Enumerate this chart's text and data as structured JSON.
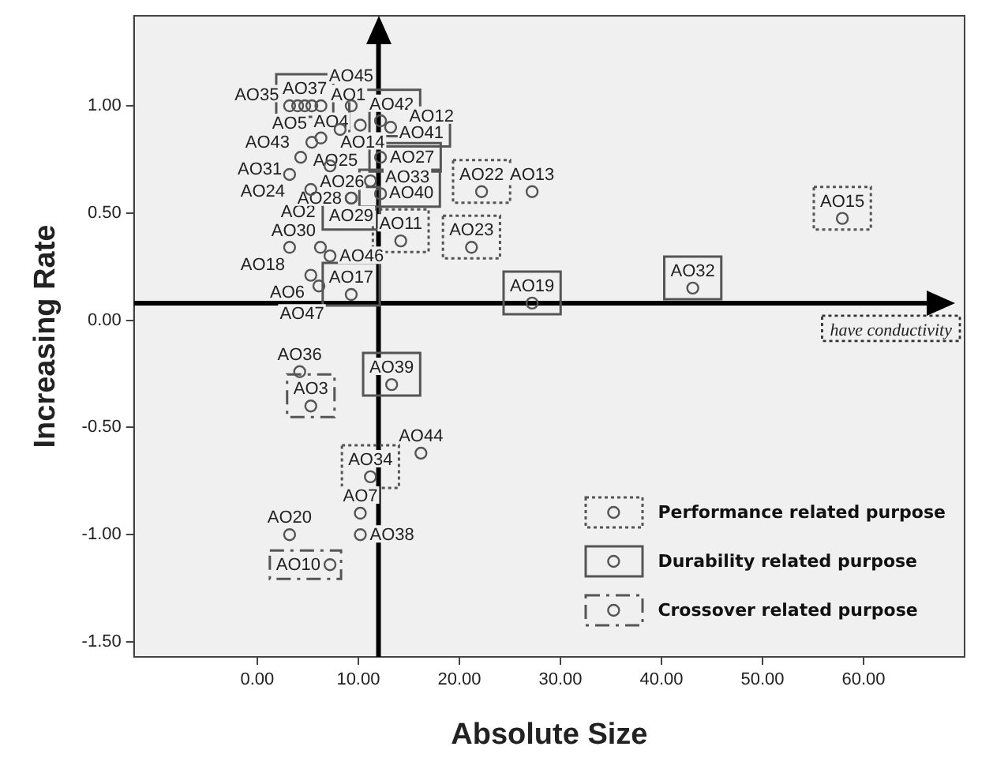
{
  "chart_data": {
    "type": "scatter",
    "xlabel": "Absolute Size",
    "ylabel": "Increasing Rate",
    "marker": "circle",
    "grid": false,
    "legend": "bottom right",
    "xlim": [
      -12.2,
      70
    ],
    "ylim": [
      -1.57,
      1.42
    ],
    "xticks": [
      {
        "value": 0,
        "label": "0.00"
      },
      {
        "value": 10,
        "label": "10.00"
      },
      {
        "value": 20,
        "label": "20.00"
      },
      {
        "value": 30,
        "label": "30.00"
      },
      {
        "value": 40,
        "label": "40.00"
      },
      {
        "value": 50,
        "label": "50.00"
      },
      {
        "value": 60,
        "label": "60.00"
      }
    ],
    "yticks": [
      {
        "value": 1,
        "label": "1.00"
      },
      {
        "value": 0.5,
        "label": "0.50"
      },
      {
        "value": 0,
        "label": "0.00"
      },
      {
        "value": -0.5,
        "label": "-0.50"
      },
      {
        "value": -1,
        "label": "-1.00"
      },
      {
        "value": -1.5,
        "label": "-1.50"
      }
    ],
    "ref_lines": [
      {
        "axis": "x",
        "value": 12
      },
      {
        "axis": "y",
        "value": 0.08
      }
    ],
    "annotations": [
      "have conductivity"
    ],
    "series": [
      {
        "name": "Performance related purpose",
        "color": "#555555",
        "line_style": "dotted",
        "x": [
          22.2,
          14.2,
          21.2,
          57.9,
          11.2
        ],
        "values": [
          0.6,
          0.37,
          0.34,
          0.475,
          -0.73
        ],
        "value_labels": [
          "AO22",
          "AO11",
          "AO23",
          "AO15",
          "AO34"
        ]
      },
      {
        "name": "Durability related purpose",
        "color": "#555555",
        "line_style": "solid",
        "x": [
          4.7,
          10.2,
          12.2,
          12.2,
          11.2,
          9.3,
          9.3,
          27.2,
          43.1,
          13.3
        ],
        "values": [
          1.0,
          0.91,
          0.93,
          0.76,
          0.65,
          0.57,
          0.12,
          0.08,
          0.15,
          -0.3
        ],
        "value_labels": [
          "AO37",
          "AO42",
          "AO41",
          "AO27",
          "AO40",
          "AO29",
          "AO17",
          "AO19",
          "AO32",
          "AO39"
        ]
      },
      {
        "name": "Crossover related purpose",
        "color": "#555555",
        "line_style": "dashed",
        "x": [
          5.3,
          7.2
        ],
        "values": [
          -0.4,
          -1.14
        ],
        "value_labels": [
          "AO3",
          "AO10"
        ]
      },
      {
        "color": "#555555",
        "x": [
          3.2,
          4.0,
          5.4,
          6.3,
          9.3,
          8.2,
          13.2,
          5.4,
          6.3,
          4.3,
          7.2,
          3.2,
          12.2,
          5.3,
          9.3,
          7.2,
          6.25,
          3.2,
          5.3,
          6.1,
          4.2,
          16.2,
          10.2,
          3.2,
          10.2,
          27.2
        ],
        "values": [
          1.0,
          1.0,
          1.0,
          1.0,
          1.0,
          0.89,
          0.9,
          0.83,
          0.85,
          0.76,
          0.72,
          0.68,
          0.59,
          0.61,
          0.57,
          0.3,
          0.34,
          0.34,
          0.21,
          0.16,
          -0.24,
          -0.62,
          -0.9,
          -1.0,
          -1.0,
          0.6
        ],
        "value_labels": [
          "AO5",
          "AO35",
          "AO1",
          "AO4",
          "AO45",
          "AO14",
          "AO12",
          "AO43",
          "AO25",
          "AO31",
          "AO26",
          "AO24",
          "AO33",
          "AO2",
          "AO28",
          "AO46",
          "AO30",
          "AO18",
          "AO6",
          "AO47",
          "AO36",
          "AO44",
          "AO7",
          "AO20",
          "AO38",
          "AO13"
        ]
      }
    ]
  }
}
